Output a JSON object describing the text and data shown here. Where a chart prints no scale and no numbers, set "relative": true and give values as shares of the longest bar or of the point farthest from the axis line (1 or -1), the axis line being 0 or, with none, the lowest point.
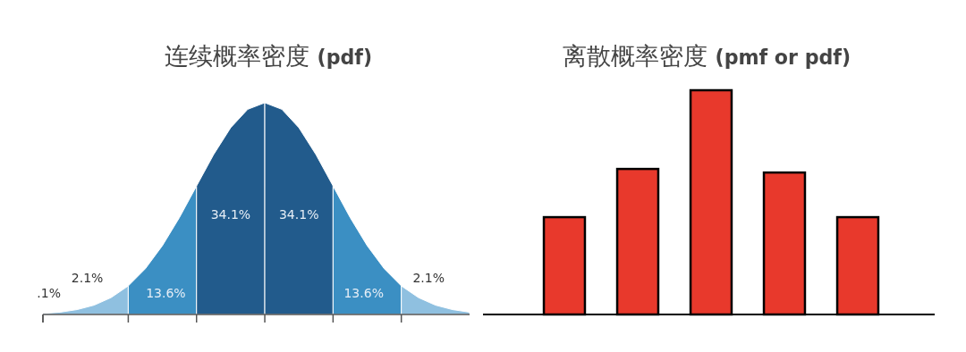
{
  "chart_data": [
    {
      "type": "area",
      "title": "连续概率密度 **(pdf)**",
      "relative": true,
      "categories": [
        null,
        null,
        null,
        null,
        null,
        null,
        null,
        null,
        null,
        null,
        null,
        null,
        null,
        null,
        null,
        null,
        null,
        null,
        null,
        null,
        null,
        null,
        null,
        null,
        null,
        null
      ],
      "series": [
        {
          "color": "#8fc0e0",
          "values": [
            0.005,
            0.011,
            0.023,
            0.044,
            0.08,
            0.135,
            null,
            null,
            null,
            null,
            null,
            null,
            null,
            null,
            null,
            null,
            null,
            null,
            null,
            null,
            null,
            null,
            null,
            null,
            null,
            null
          ]
        },
        {
          "color": "#3b8fc3",
          "values": [
            null,
            null,
            null,
            null,
            null,
            0.135,
            0.216,
            0.325,
            0.458,
            0.607,
            null,
            null,
            null,
            null,
            null,
            null,
            null,
            null,
            null,
            null,
            null,
            null,
            null,
            null,
            null,
            null
          ]
        },
        {
          "color": "#225b8c",
          "values": [
            null,
            null,
            null,
            null,
            null,
            null,
            null,
            null,
            null,
            0.607,
            0.755,
            0.882,
            0.969,
            1,
            null,
            null,
            null,
            null,
            null,
            null,
            null,
            null,
            null,
            null,
            null,
            null
          ]
        },
        {
          "color": "#225b8c",
          "values": [
            null,
            null,
            null,
            null,
            null,
            null,
            null,
            null,
            null,
            null,
            null,
            null,
            null,
            1,
            0.969,
            0.882,
            0.755,
            0.607,
            null,
            null,
            null,
            null,
            null,
            null,
            null,
            null
          ]
        },
        {
          "color": "#3b8fc3",
          "values": [
            null,
            null,
            null,
            null,
            null,
            null,
            null,
            null,
            null,
            null,
            null,
            null,
            null,
            null,
            null,
            null,
            null,
            0.607,
            0.458,
            0.325,
            0.216,
            0.135,
            null,
            null,
            null,
            null
          ]
        },
        {
          "color": "#8fc0e0",
          "values": [
            null,
            null,
            null,
            null,
            null,
            null,
            null,
            null,
            null,
            null,
            null,
            null,
            null,
            null,
            null,
            null,
            null,
            null,
            null,
            null,
            null,
            0.135,
            0.08,
            0.044,
            0.023,
            0.011
          ]
        }
      ],
      "annotations": [
        "34.1%",
        "34.1%",
        "13.6%",
        "13.6%",
        "2.1%",
        "2.1%",
        ".1%"
      ]
    },
    {
      "type": "bar",
      "title": "离散概率密度 **(pmf or pdf)**",
      "relative": true,
      "categories": [
        null,
        null,
        null,
        null,
        null
      ],
      "values": [
        0.434,
        0.649,
        1,
        0.633,
        0.434
      ],
      "color": "#e8392c"
    }
  ]
}
